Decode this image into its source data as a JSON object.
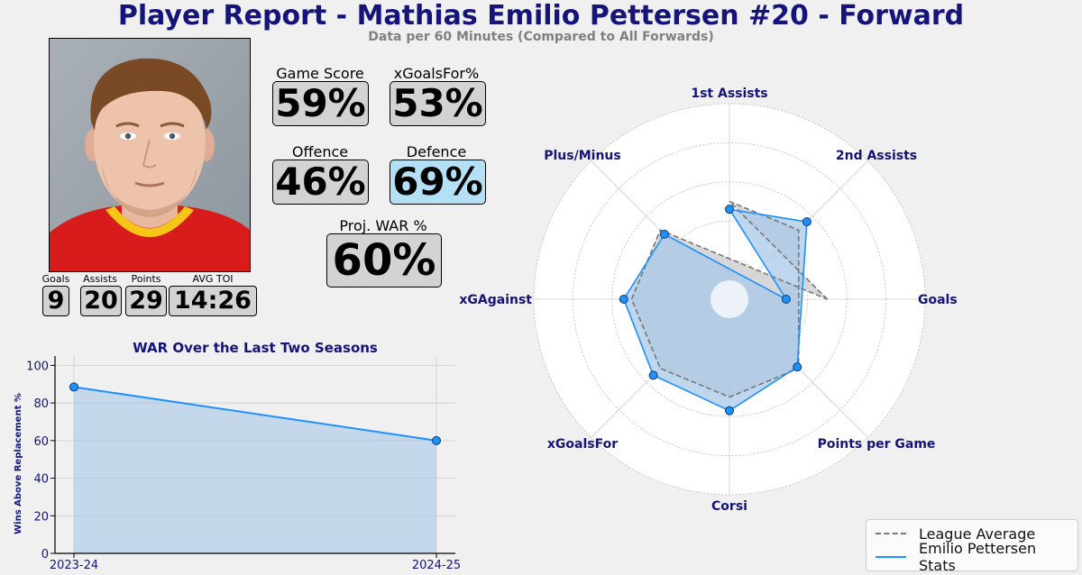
{
  "header": {
    "title": "Player Report - Mathias Emilio Pettersen #20 - Forward",
    "subtitle": "Data per 60 Minutes (Compared to All Forwards)"
  },
  "player_stats": [
    {
      "label": "Goals",
      "value": "9"
    },
    {
      "label": "Assists",
      "value": "20"
    },
    {
      "label": "Points",
      "value": "29"
    },
    {
      "label": "AVG TOI",
      "value": "14:26"
    }
  ],
  "metrics": {
    "game_score": {
      "label": "Game Score",
      "value": "59%"
    },
    "xgoalsfor_pct": {
      "label": "xGoalsFor%",
      "value": "53%"
    },
    "offence": {
      "label": "Offence",
      "value": "46%"
    },
    "defence": {
      "label": "Defence",
      "value": "69%"
    },
    "proj_war": {
      "label": "Proj. WAR %",
      "value": "60%"
    }
  },
  "colors": {
    "title": "#14147a",
    "player_line": "#1e90ff",
    "player_fill": "#a8c8e8",
    "league_line": "#777777",
    "league_fill": "#c8c8c8",
    "highlight_box": "#b3e0f5",
    "neutral_box": "#d3d3d3"
  },
  "chart_data": [
    {
      "type": "area",
      "title": "WAR Over the Last Two Seasons",
      "xlabel": "",
      "ylabel": "Wins Above Replacement %",
      "categories": [
        "2023-24",
        "2024-25"
      ],
      "values": [
        88.5,
        60
      ],
      "ylim": [
        0,
        105
      ],
      "yticks": [
        "0",
        "20",
        "40",
        "60",
        "80",
        "100"
      ],
      "grid": true
    },
    {
      "type": "radar",
      "axes": [
        "Goals",
        "1st Assists",
        "2nd Assists",
        "Points per Game",
        "Corsi",
        "xGoalsFor",
        "xGAgainst",
        "Plus/Minus"
      ],
      "axis_angles_deg": [
        0,
        90,
        45,
        -45,
        -90,
        -135,
        180,
        135
      ],
      "rlim": [
        0,
        100
      ],
      "series": [
        {
          "name": "League Average",
          "values": [
            50,
            50,
            50,
            50,
            50,
            50,
            50,
            50
          ]
        },
        {
          "name": "Emilio Pettersen Stats",
          "values": [
            29,
            46,
            56,
            49,
            57,
            55,
            54,
            47
          ]
        }
      ],
      "legend": "bottom-right",
      "grid": true
    }
  ]
}
